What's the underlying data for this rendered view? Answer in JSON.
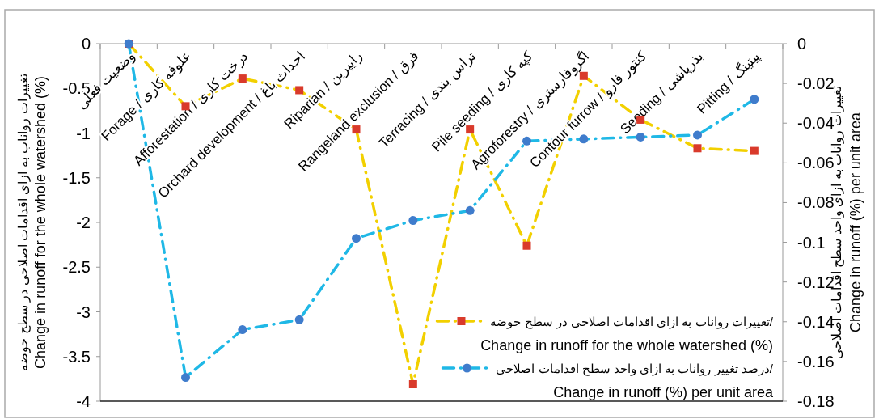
{
  "chart_data": {
    "type": "line",
    "ylabel": "تغییرات رواناب به ازای اقدامات اصلاحی در سطح حوضه\nChange in runoff for the whole watershed (%)",
    "y2label": "تغییرات رواناب به ازای واحد سطح اقدامات اصلاحی\nChange in runoff (%)  per unit area",
    "categories": [
      "وضعیت فعلی",
      "Forage / علوفه کاری",
      "Afforestation / درخت کاری",
      "Orchard development / احداث باغ",
      "Riparian / رایپرین",
      "Rangeland exclusion / قرق",
      "Terracing / تراس بندی",
      "Pile seeding / کپه کاری",
      "Agroforestry / اگروفارستری",
      "Contour furrow / کنتور فارو",
      "Seeding / بذرپاشی",
      "Pitting / پیتینگ"
    ],
    "series": [
      {
        "name": "تغییرات رواناب به ازای اقدامات اصلاحی در سطح حوضه/\nChange in runoff for the whole watershed (%)",
        "color": "#f2d000",
        "marker": "square",
        "colors": [
          "#d93a2b",
          "#d93a2b",
          "#d93a2b",
          "#d93a2b",
          "#d93a2b",
          "#d93a2b",
          "#d93a2b",
          "#d93a2b",
          "#d93a2b",
          "#d93a2b",
          "#d93a2b",
          "#d93a2b"
        ],
        "values": [
          0,
          -0.7,
          -0.39,
          -0.52,
          -0.96,
          -3.81,
          -0.96,
          -2.26,
          -0.36,
          -0.85,
          -1.17,
          -1.2
        ]
      },
      {
        "name": "درصد تغییر رواناب به ازای واحد سطح اقدامات اصلاحی/\nChange in runoff (%)  per unit area",
        "color": "#1fb8e6",
        "marker": "circle",
        "axis": "y2",
        "colors": [
          "#3f7ccc",
          "#3f7ccc",
          "#3f7ccc",
          "#3f7ccc",
          "#3f7ccc",
          "#3f7ccc",
          "#3f7ccc",
          "#3f7ccc",
          "#3f7ccc",
          "#3f7ccc",
          "#3f7ccc",
          "#3f7ccc"
        ],
        "values": [
          0,
          -0.168,
          -0.144,
          -0.139,
          -0.098,
          -0.089,
          -0.084,
          -0.049,
          -0.048,
          -0.047,
          -0.046,
          -0.028
        ]
      }
    ],
    "ylim": [
      -4,
      0
    ],
    "yticks": [
      0,
      -0.5,
      -1,
      -1.5,
      -2,
      -2.5,
      -3,
      -3.5,
      -4
    ],
    "y2lim": [
      -0.18,
      0
    ],
    "y2ticks": [
      0,
      -0.02,
      -0.04,
      -0.06,
      -0.08,
      -0.1,
      -0.12,
      -0.14,
      -0.16,
      -0.18
    ],
    "line_style": "dashdot",
    "legend": "bottom right",
    "grid": false
  }
}
